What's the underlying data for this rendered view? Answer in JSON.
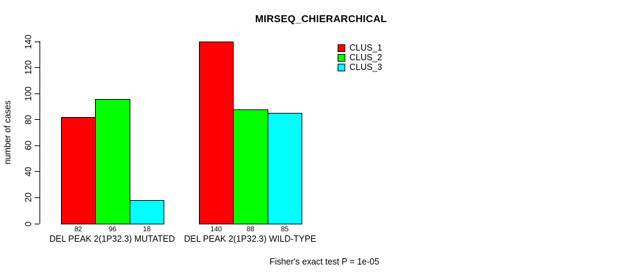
{
  "chart_data": {
    "type": "bar",
    "title": "MIRSEQ_CHIERARCHICAL",
    "ylabel": "number of cases",
    "ylim": [
      0,
      140
    ],
    "yticks": [
      0,
      20,
      40,
      60,
      80,
      100,
      120,
      140
    ],
    "grid": false,
    "legend_position": "top-right-inside",
    "categories": [
      "DEL PEAK 2(1P32.3) MUTATED",
      "DEL PEAK 2(1P32.3) WILD-TYPE"
    ],
    "series": [
      {
        "name": "CLUS_1",
        "color": "#ff0000",
        "values": [
          82,
          140
        ]
      },
      {
        "name": "CLUS_2",
        "color": "#00ff00",
        "values": [
          96,
          88
        ]
      },
      {
        "name": "CLUS_3",
        "color": "#00ffff",
        "values": [
          18,
          85
        ]
      }
    ],
    "bar_value_labels": [
      [
        82,
        96,
        18
      ],
      [
        140,
        88,
        85
      ]
    ],
    "footer": "Fisher's exact test P = 1e-05"
  },
  "colors": {
    "text": "#000000",
    "background": "#ffffff",
    "axis": "#000000",
    "bar_border": "#000000"
  }
}
